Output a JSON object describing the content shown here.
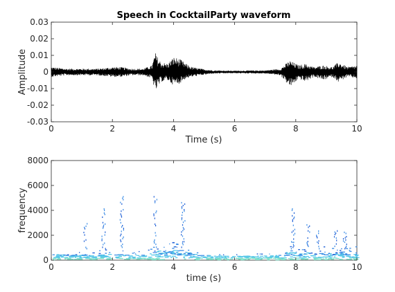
{
  "chart_data": [
    {
      "type": "line",
      "title": "Speech in CocktailParty waveform",
      "xlabel": "Time (s)",
      "ylabel": "Amplitude",
      "xlim": [
        0,
        10
      ],
      "ylim": [
        -0.03,
        0.03
      ],
      "x_ticks": [
        "0",
        "2",
        "4",
        "6",
        "8",
        "10"
      ],
      "y_ticks": [
        "0.03",
        "0.02",
        "0.01",
        "0",
        "-0.01",
        "-0.02",
        "-0.03"
      ],
      "grid": false,
      "series_color": "#000000",
      "envelope": {
        "x": [
          0.0,
          0.5,
          1.0,
          1.5,
          1.8,
          2.0,
          2.3,
          2.6,
          3.0,
          3.3,
          3.4,
          3.5,
          3.6,
          3.8,
          4.0,
          4.2,
          4.4,
          4.6,
          4.9,
          5.3,
          6.0,
          7.0,
          7.5,
          7.8,
          7.9,
          8.1,
          8.3,
          8.6,
          8.9,
          9.2,
          9.4,
          9.7,
          10.0
        ],
        "upper": [
          0.003,
          0.002,
          0.002,
          0.002,
          0.0025,
          0.003,
          0.003,
          0.002,
          0.002,
          0.004,
          0.012,
          0.008,
          0.006,
          0.005,
          0.009,
          0.008,
          0.005,
          0.003,
          0.002,
          0.001,
          0.0008,
          0.001,
          0.002,
          0.007,
          0.006,
          0.004,
          0.005,
          0.003,
          0.004,
          0.003,
          0.006,
          0.003,
          0.004
        ],
        "lower": [
          -0.003,
          -0.002,
          -0.002,
          -0.002,
          -0.0025,
          -0.003,
          -0.003,
          -0.002,
          -0.002,
          -0.004,
          -0.012,
          -0.009,
          -0.006,
          -0.005,
          -0.008,
          -0.007,
          -0.004,
          -0.003,
          -0.002,
          -0.001,
          -0.0008,
          -0.001,
          -0.002,
          -0.009,
          -0.008,
          -0.004,
          -0.006,
          -0.003,
          -0.005,
          -0.003,
          -0.006,
          -0.003,
          -0.004
        ]
      }
    },
    {
      "type": "heatmap",
      "title": "",
      "xlabel": "time (s)",
      "ylabel": "frequency",
      "xlim": [
        0,
        10
      ],
      "ylim": [
        0,
        8000
      ],
      "x_ticks": [
        "0",
        "2",
        "4",
        "6",
        "8",
        "10"
      ],
      "y_ticks": [
        "8000",
        "6000",
        "4000",
        "2000",
        "0"
      ],
      "grid": false,
      "colors": [
        "#1f5fd6",
        "#3f8fe6",
        "#56c8e8",
        "#7ee0c8"
      ],
      "bursts": [
        {
          "t": 1.1,
          "fmax": 3000
        },
        {
          "t": 1.7,
          "fmax": 4200
        },
        {
          "t": 2.3,
          "fmax": 5300
        },
        {
          "t": 3.4,
          "fmax": 5300
        },
        {
          "t": 4.3,
          "fmax": 4700
        },
        {
          "t": 7.9,
          "fmax": 4200
        },
        {
          "t": 8.4,
          "fmax": 2900
        },
        {
          "t": 8.7,
          "fmax": 2400
        },
        {
          "t": 9.3,
          "fmax": 2700
        },
        {
          "t": 9.6,
          "fmax": 2300
        }
      ]
    }
  ]
}
